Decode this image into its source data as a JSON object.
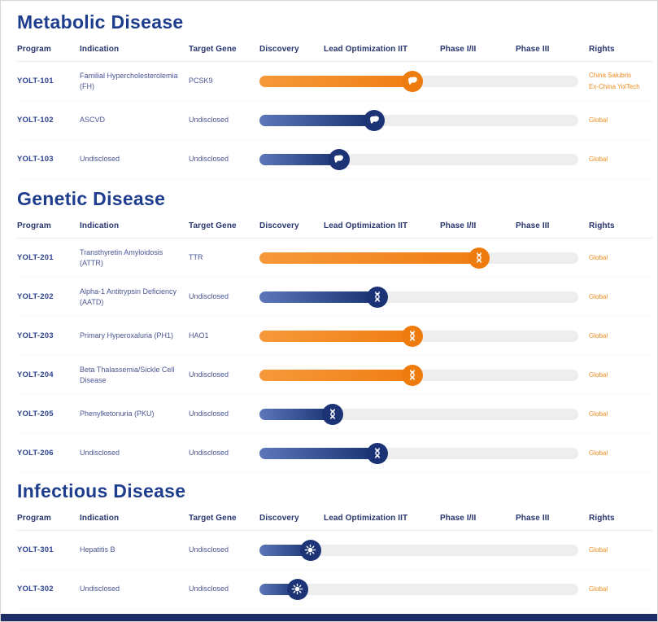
{
  "columns": [
    "Program",
    "Indication",
    "Target Gene",
    "Discovery",
    "Lead Optimization IIT",
    "Phase I/II",
    "Phase III",
    "Rights"
  ],
  "colors": {
    "heading_navy": "#1E3D8D",
    "text_navy": "#4A5694",
    "rights_orange": "#F0891D",
    "blue_bar_start": "#5D76BB",
    "blue_bar_end": "#16306F",
    "orange_bar_start": "#F6993A",
    "orange_bar_end": "#F07D13",
    "track_gray": "#EEEEEE",
    "footer_navy": "#1D2E66"
  },
  "chart_data": {
    "type": "bar",
    "stages": [
      "Discovery",
      "Lead Optimization IIT",
      "Phase I/II",
      "Phase III"
    ],
    "groups": [
      {
        "title": "Metabolic Disease",
        "icon": "liver-icon",
        "rows": [
          {
            "program": "YOLT-101",
            "indication": "Familial Hypercholesterolemia (FH)",
            "target_gene": "PCSK9",
            "color": "orange",
            "progress_pct": 49,
            "stage_reached": "Lead Optimization IIT",
            "rights": "China Salubris\nEx-China YolTech"
          },
          {
            "program": "YOLT-102",
            "indication": "ASCVD",
            "target_gene": "Undisclosed",
            "color": "blue",
            "progress_pct": 37,
            "stage_reached": "Lead Optimization IIT",
            "rights": "Global"
          },
          {
            "program": "YOLT-103",
            "indication": "Undisclosed",
            "target_gene": "Undisclosed",
            "color": "blue",
            "progress_pct": 26,
            "stage_reached": "Lead Optimization IIT",
            "rights": "Global"
          }
        ]
      },
      {
        "title": "Genetic Disease",
        "icon": "dna-icon",
        "rows": [
          {
            "program": "YOLT-201",
            "indication": "Transthyretin Amyloidosis (ATTR)",
            "target_gene": "TTR",
            "color": "orange",
            "progress_pct": 70,
            "stage_reached": "Phase I/II",
            "rights": "Global"
          },
          {
            "program": "YOLT-202",
            "indication": "Alpha-1 Antitrypsin Deficiency (AATD)",
            "target_gene": "Undisclosed",
            "color": "blue",
            "progress_pct": 38,
            "stage_reached": "Lead Optimization IIT",
            "rights": "Global"
          },
          {
            "program": "YOLT-203",
            "indication": "Primary Hyperoxaluria (PH1)",
            "target_gene": "HAO1",
            "color": "orange",
            "progress_pct": 49,
            "stage_reached": "Lead Optimization IIT",
            "rights": "Global"
          },
          {
            "program": "YOLT-204",
            "indication": "Beta Thalassemia/Sickle Cell Disease",
            "target_gene": "Undisclosed",
            "color": "orange",
            "progress_pct": 49,
            "stage_reached": "Lead Optimization IIT",
            "rights": "Global"
          },
          {
            "program": "YOLT-205",
            "indication": "Phenylketonuria (PKU)",
            "target_gene": "Undisclosed",
            "color": "blue",
            "progress_pct": 24,
            "stage_reached": "Lead Optimization IIT",
            "rights": "Global"
          },
          {
            "program": "YOLT-206",
            "indication": "Undisclosed",
            "target_gene": "Undisclosed",
            "color": "blue",
            "progress_pct": 38,
            "stage_reached": "Lead Optimization IIT",
            "rights": "Global"
          }
        ]
      },
      {
        "title": "Infectious Disease",
        "icon": "virus-icon",
        "rows": [
          {
            "program": "YOLT-301",
            "indication": "Hepatitis B",
            "target_gene": "Undisclosed",
            "color": "blue",
            "progress_pct": 17,
            "stage_reached": "Discovery",
            "rights": "Global"
          },
          {
            "program": "YOLT-302",
            "indication": "Undisclosed",
            "target_gene": "Undisclosed",
            "color": "blue",
            "progress_pct": 13,
            "stage_reached": "Discovery",
            "rights": "Global"
          }
        ]
      }
    ]
  }
}
